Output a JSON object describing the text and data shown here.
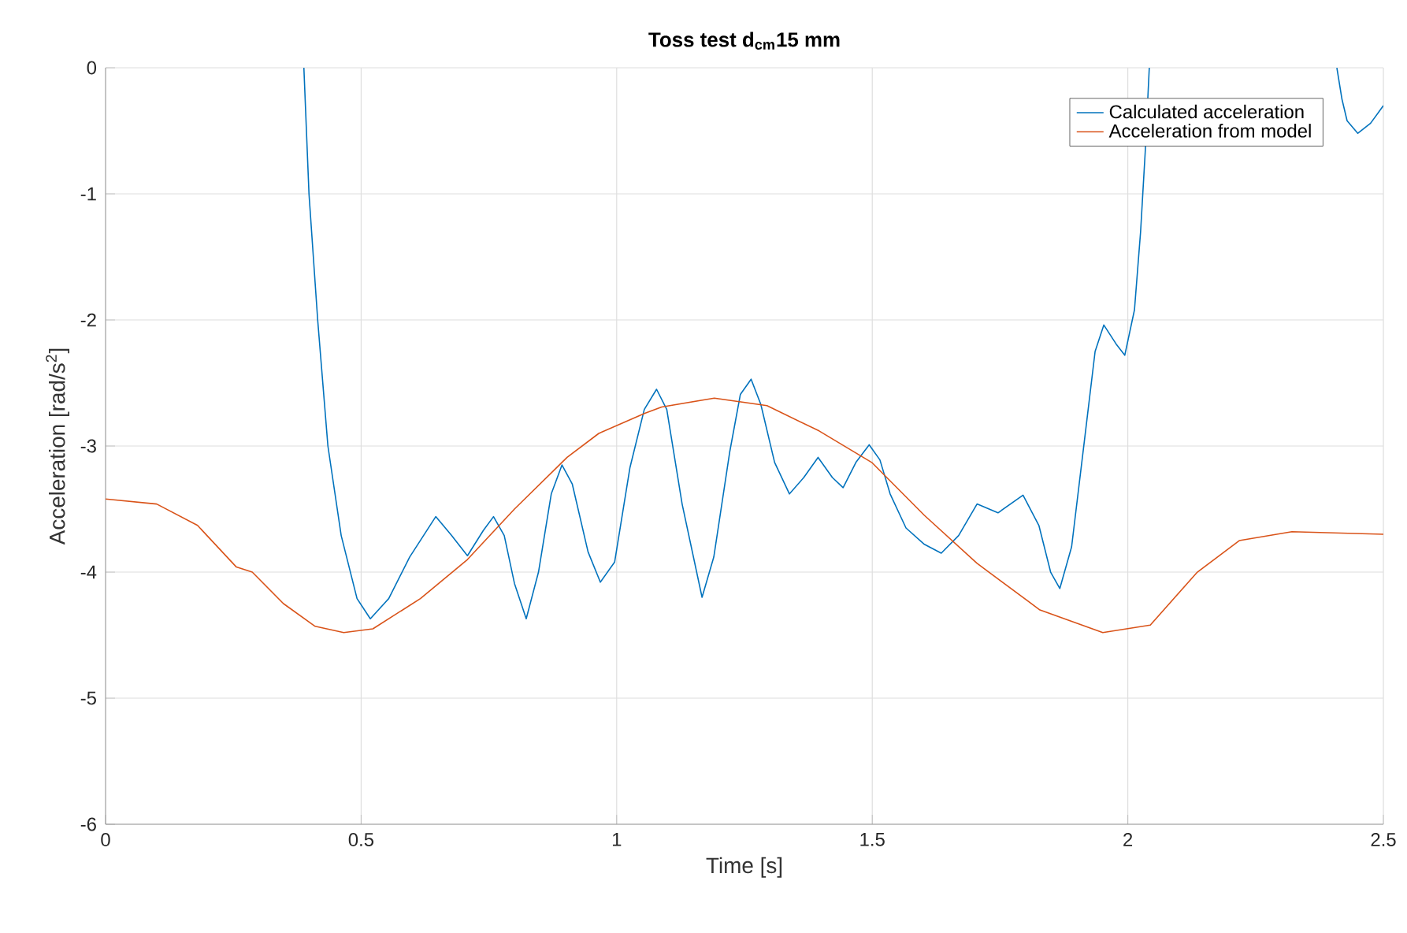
{
  "chart_data": {
    "type": "line",
    "title": "Toss test d$_{cm}$15 mm",
    "xlabel": "Time [s]",
    "ylabel": "Acceleration [rad/s$^{2}$]",
    "xlim": [
      0,
      2.5
    ],
    "ylim": [
      -6,
      0
    ],
    "xticks": [
      0,
      0.5,
      1,
      1.5,
      2,
      2.5
    ],
    "yticks": [
      -6,
      -5,
      -4,
      -3,
      -2,
      -1,
      0
    ],
    "grid": true,
    "legend": "top right",
    "line_style": "solid",
    "marker": "none",
    "series": [
      {
        "name": "Calculated acceleration",
        "color": "#0072bd",
        "x": [
          0.388,
          0.398,
          0.415,
          0.435,
          0.461,
          0.492,
          0.518,
          0.554,
          0.595,
          0.646,
          0.677,
          0.708,
          0.739,
          0.759,
          0.78,
          0.8,
          0.823,
          0.847,
          0.872,
          0.893,
          0.913,
          0.944,
          0.968,
          0.996,
          1.026,
          1.054,
          1.078,
          1.098,
          1.128,
          1.167,
          1.19,
          1.221,
          1.242,
          1.263,
          1.282,
          1.309,
          1.338,
          1.366,
          1.394,
          1.422,
          1.443,
          1.468,
          1.494,
          1.515,
          1.535,
          1.566,
          1.602,
          1.635,
          1.669,
          1.705,
          1.746,
          1.795,
          1.826,
          1.849,
          1.867,
          1.89,
          1.915,
          1.936,
          1.953,
          1.977,
          1.994,
          2.013,
          2.025,
          2.034,
          2.042,
          2.2,
          2.409,
          2.419,
          2.429,
          2.45,
          2.475,
          2.5
        ],
        "values": [
          0,
          -1.0,
          -2.0,
          -3.0,
          -3.71,
          -4.21,
          -4.37,
          -4.21,
          -3.88,
          -3.56,
          -3.71,
          -3.87,
          -3.67,
          -3.56,
          -3.71,
          -4.09,
          -4.37,
          -4.0,
          -3.38,
          -3.15,
          -3.3,
          -3.84,
          -4.08,
          -3.92,
          -3.17,
          -2.71,
          -2.55,
          -2.71,
          -3.46,
          -4.2,
          -3.88,
          -3.05,
          -2.59,
          -2.47,
          -2.67,
          -3.13,
          -3.38,
          -3.25,
          -3.09,
          -3.25,
          -3.33,
          -3.13,
          -2.99,
          -3.11,
          -3.38,
          -3.65,
          -3.78,
          -3.85,
          -3.71,
          -3.46,
          -3.53,
          -3.39,
          -3.63,
          -4.0,
          -4.13,
          -3.8,
          -2.96,
          -2.25,
          -2.04,
          -2.19,
          -2.28,
          -1.92,
          -1.3,
          -0.67,
          0,
          null,
          0,
          -0.25,
          -0.42,
          -0.52,
          -0.44,
          -0.3
        ]
      },
      {
        "name": "Acceleration from model",
        "color": "#d95319",
        "x": [
          0,
          0.1,
          0.18,
          0.256,
          0.287,
          0.348,
          0.41,
          0.466,
          0.523,
          0.616,
          0.708,
          0.8,
          0.903,
          0.965,
          1.055,
          1.088,
          1.191,
          1.294,
          1.396,
          1.499,
          1.602,
          1.705,
          1.828,
          1.951,
          2.044,
          2.136,
          2.218,
          2.321,
          2.5
        ],
        "values": [
          -3.42,
          -3.46,
          -3.63,
          -3.96,
          -4.0,
          -4.25,
          -4.43,
          -4.48,
          -4.45,
          -4.21,
          -3.9,
          -3.5,
          -3.09,
          -2.9,
          -2.74,
          -2.69,
          -2.62,
          -2.68,
          -2.88,
          -3.13,
          -3.55,
          -3.93,
          -4.3,
          -4.48,
          -4.42,
          -4.0,
          -3.75,
          -3.68,
          -3.7
        ]
      }
    ]
  }
}
